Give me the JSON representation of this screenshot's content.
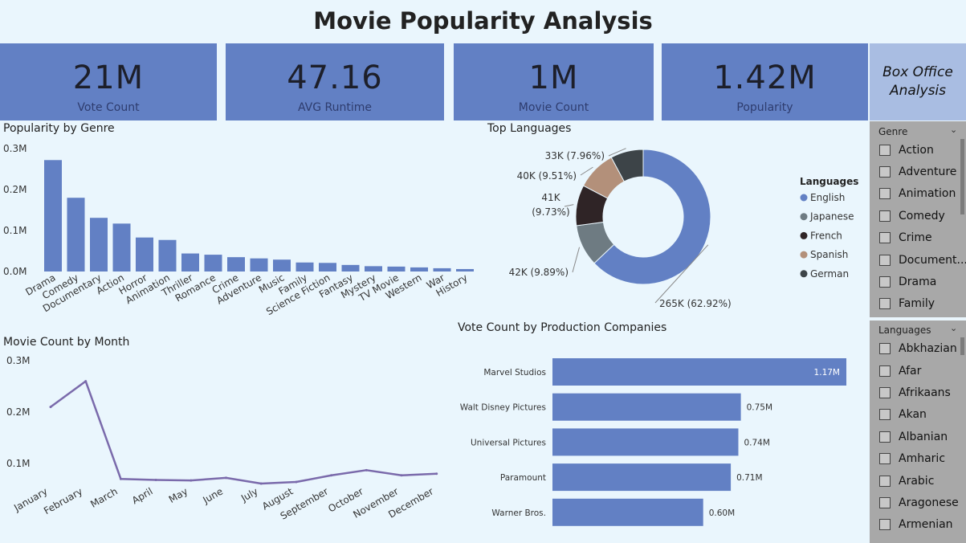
{
  "page_title": "Movie Popularity Analysis",
  "kpis": [
    {
      "value": "21M",
      "label": "Vote Count"
    },
    {
      "value": "47.16",
      "label": "AVG Runtime"
    },
    {
      "value": "1M",
      "label": "Movie Count"
    },
    {
      "value": "1.42M",
      "label": "Popularity"
    }
  ],
  "nav_button": "Box Office Analysis",
  "colors": {
    "bar": "#6280c4",
    "line": "#7a6aab",
    "kpi_bg": "#6280c4",
    "nav_bg": "#a9bde2",
    "page_bg": "#eaf6fd"
  },
  "chart_data": [
    {
      "type": "bar",
      "title": "Popularity by Genre",
      "categories": [
        "Drama",
        "Comedy",
        "Documentary",
        "Action",
        "Horror",
        "Animation",
        "Thriller",
        "Romance",
        "Crime",
        "Adventure",
        "Music",
        "Family",
        "Science Fiction",
        "Fantasy",
        "Mystery",
        "TV Movie",
        "Western",
        "War",
        "History"
      ],
      "values": [
        0.272,
        0.18,
        0.131,
        0.117,
        0.083,
        0.077,
        0.044,
        0.041,
        0.035,
        0.032,
        0.029,
        0.022,
        0.021,
        0.016,
        0.013,
        0.012,
        0.01,
        0.008,
        0.006
      ],
      "unit": "M",
      "y_ticks": [
        "0.0M",
        "0.1M",
        "0.2M",
        "0.3M"
      ],
      "ylim": [
        0,
        0.3
      ],
      "grid": false
    },
    {
      "type": "pie",
      "title": "Top Languages",
      "legend_title": "Languages",
      "legend_position": "right",
      "slices": [
        {
          "name": "English",
          "value": 265000,
          "label": "265K (62.92%)",
          "color": "#6280c4"
        },
        {
          "name": "Japanese",
          "value": 42000,
          "label": "42K (9.89%)",
          "color": "#6e7b82"
        },
        {
          "name": "French",
          "value": 41000,
          "label_lines": [
            "41K",
            "(9.73%)"
          ],
          "color": "#2f2426"
        },
        {
          "name": "Spanish",
          "value": 40000,
          "label": "40K (9.51%)",
          "color": "#b3907a"
        },
        {
          "name": "German",
          "value": 33000,
          "label": "33K (7.96%)",
          "color": "#3d4448"
        }
      ]
    },
    {
      "type": "line",
      "title": "Movie Count by Month",
      "categories": [
        "January",
        "February",
        "March",
        "April",
        "May",
        "June",
        "July",
        "August",
        "September",
        "October",
        "November",
        "December"
      ],
      "values": [
        0.21,
        0.26,
        0.07,
        0.068,
        0.067,
        0.072,
        0.061,
        0.064,
        0.077,
        0.087,
        0.077,
        0.08
      ],
      "unit": "M",
      "y_ticks": [
        "0.1M",
        "0.2M",
        "0.3M"
      ],
      "ylim": [
        0.05,
        0.3
      ],
      "grid": false
    },
    {
      "type": "bar",
      "orientation": "horizontal",
      "title": "Vote Count by Production Companies",
      "categories": [
        "Marvel Studios",
        "Walt Disney Pictures",
        "Universal Pictures",
        "Paramount",
        "Warner Bros."
      ],
      "values": [
        1.17,
        0.75,
        0.74,
        0.71,
        0.6
      ],
      "labels": [
        "1.17M",
        "0.75M",
        "0.74M",
        "0.71M",
        "0.60M"
      ],
      "unit": "M",
      "grid": false
    }
  ],
  "slicers": {
    "genre": {
      "header": "Genre",
      "items": [
        "Action",
        "Adventure",
        "Animation",
        "Comedy",
        "Crime",
        "Document...",
        "Drama",
        "Family"
      ]
    },
    "languages": {
      "header": "Languages",
      "items": [
        "Abkhazian",
        "Afar",
        "Afrikaans",
        "Akan",
        "Albanian",
        "Amharic",
        "Arabic",
        "Aragonese",
        "Armenian"
      ]
    }
  }
}
